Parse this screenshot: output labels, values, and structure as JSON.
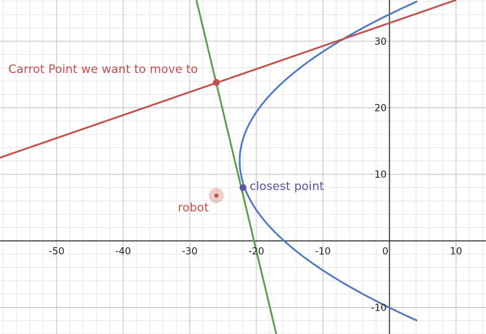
{
  "chart_data": {
    "type": "line",
    "xlim": [
      -58.5,
      14.5
    ],
    "ylim": [
      -14.0,
      36.2
    ],
    "grid": true,
    "minor_grid": true,
    "major_step": 10,
    "minor_step": 2,
    "x_ticks": [
      -50,
      -40,
      -30,
      -20,
      -10,
      0,
      10
    ],
    "y_ticks": [
      -10,
      10,
      20,
      30
    ],
    "x_tick_labels": [
      "-50",
      "-40",
      "-30",
      "-20",
      "-10",
      "0",
      "10"
    ],
    "y_tick_labels": [
      "-10",
      "10",
      "20",
      "30"
    ],
    "series": [
      {
        "kind": "parabola",
        "color": "#4f7ac2",
        "vertex": [
          -22.5,
          12.0
        ],
        "coefficient": 0.0463,
        "y_range": [
          -12.0,
          36.2
        ]
      },
      {
        "kind": "line",
        "color": "#c0504d",
        "points": [
          [
            -58.5,
            12.5
          ],
          [
            10,
            36.2
          ]
        ]
      },
      {
        "kind": "line",
        "color": "#5a9e4b",
        "points": [
          [
            -29.0,
            36.2
          ],
          [
            -17.0,
            -14.0
          ]
        ]
      }
    ],
    "points": [
      {
        "name": "carrot-point",
        "x": -26.0,
        "y": 23.8,
        "color": "#c0504d",
        "label": "Carrot Point we want to move to"
      },
      {
        "name": "closest-point",
        "x": -22.0,
        "y": 8.0,
        "color": "#5b55a3",
        "label": "closest point"
      },
      {
        "name": "robot",
        "x": -26.0,
        "y": 6.8,
        "color": "#c0504d",
        "label": "robot"
      }
    ]
  }
}
